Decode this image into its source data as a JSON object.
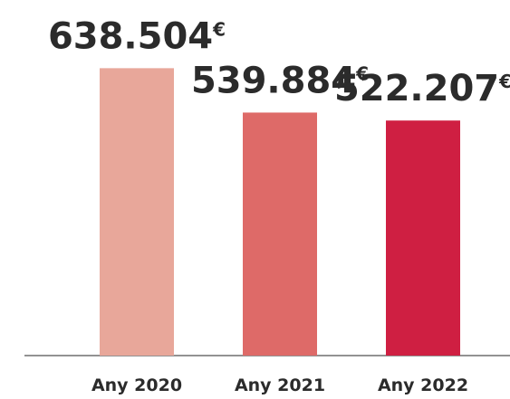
{
  "chart_data": {
    "type": "bar",
    "title": "",
    "xlabel": "",
    "ylabel": "",
    "categories": [
      "Any 2020",
      "Any 2021",
      "Any 2022"
    ],
    "values": [
      638504,
      539884,
      522207
    ],
    "value_labels": [
      "638.504",
      "539.884",
      "522.207"
    ],
    "currency_symbol": "€",
    "bar_colors": [
      "#e8a79a",
      "#de6a68",
      "#cf1f42"
    ],
    "ylim": [
      0,
      790000
    ],
    "grid": false,
    "baseline": true
  }
}
